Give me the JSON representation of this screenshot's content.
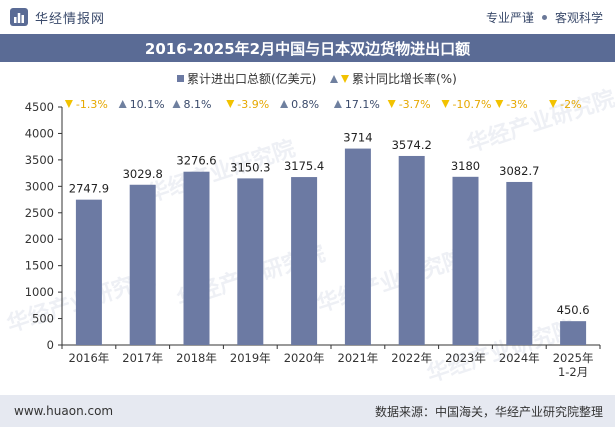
{
  "header": {
    "brand": "华经情报网",
    "slogan_left": "专业严谨",
    "slogan_right": "客观科学"
  },
  "title": "2016-2025年2月中国与日本双边货物进出口额",
  "watermark": "华经产业研究院",
  "footer": {
    "website": "www.huaon.com",
    "source": "数据来源：中国海关，华经产业研究院整理"
  },
  "colors": {
    "bar": "#6c7aa3",
    "up": "#6f809f",
    "down": "#f2c200",
    "title_bg": "#5a6b95",
    "footer_bg": "#e6e9f1"
  },
  "chart_data": {
    "type": "bar",
    "categories": [
      "2016年",
      "2017年",
      "2018年",
      "2019年",
      "2020年",
      "2021年",
      "2022年",
      "2023年",
      "2024年",
      "2025年\n1-2月"
    ],
    "series": [
      {
        "name": "累计进出口总额(亿美元)",
        "values": [
          2747.9,
          3029.8,
          3276.6,
          3150.3,
          3175.4,
          3714,
          3574.2,
          3180,
          3082.7,
          450.6
        ],
        "labels": [
          "2747.9",
          "3029.8",
          "3276.6",
          "3150.3",
          "3175.4",
          "3714",
          "3574.2",
          "3180",
          "3082.7",
          "450.6"
        ]
      },
      {
        "name": "累计同比增长率(%)",
        "values": [
          -1.3,
          10.1,
          8.1,
          -3.9,
          0.8,
          17.1,
          -3.7,
          -10.7,
          -3,
          -2
        ],
        "labels": [
          "-1.3%",
          "10.1%",
          "8.1%",
          "-3.9%",
          "0.8%",
          "17.1%",
          "-3.7%",
          "-10.7%",
          "-3%",
          "-2%"
        ]
      }
    ],
    "ylim": [
      0,
      4500
    ],
    "yticks": [
      0,
      500,
      1000,
      1500,
      2000,
      2500,
      3000,
      3500,
      4000,
      4500
    ],
    "grid": false,
    "legend_position": "top-center"
  }
}
